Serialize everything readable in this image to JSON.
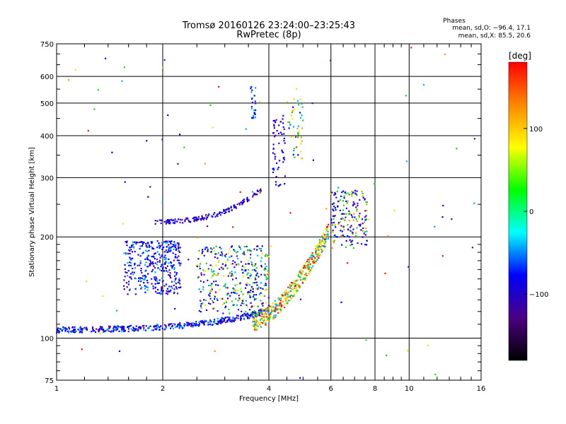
{
  "chart_data": {
    "type": "scatter",
    "title": "Tromsø 20160126 23:24:00–23:25:43",
    "subtitle": "RwPretec (8p)",
    "xlabel": "Frequency [MHz]",
    "ylabel": "Stationary phase Virtual Height [km]",
    "x_scale": "log",
    "y_scale": "log",
    "xlim": [
      1,
      16
    ],
    "ylim": [
      75,
      750
    ],
    "x_ticks": [
      "1",
      "2",
      "4",
      "6",
      "8",
      "10",
      "16"
    ],
    "x_grid": [
      1,
      2,
      4,
      6,
      8,
      10,
      16
    ],
    "y_ticks": [
      "75",
      "100",
      "200",
      "300",
      "400",
      "500",
      "600",
      "750"
    ],
    "y_grid": [
      75,
      100,
      200,
      300,
      400,
      500,
      600,
      750
    ],
    "grid": true,
    "phases": {
      "title": "Phases",
      "line_o": "mean, sd,O: −96.4, 17.1",
      "line_x": "mean, sd,X:  85.5, 20.6"
    },
    "colorbar": {
      "label": "[deg]",
      "range": [
        -180,
        180
      ],
      "ticks": [
        "100",
        "0",
        "−100"
      ],
      "tick_values": [
        100,
        0,
        -100
      ],
      "colors": [
        "#ff0000",
        "#ff8800",
        "#ffff00",
        "#00ff00",
        "#00ffff",
        "#0000ff",
        "#4b0082",
        "#000000"
      ]
    },
    "series": [
      {
        "trace": "O-mode E/F1 lower trace",
        "x_range": [
          1.0,
          3.9
        ],
        "y_start": 106,
        "y_end": 120,
        "phase_mean": -96.4
      },
      {
        "trace": "O-mode F trace",
        "x_range": [
          1.8,
          4.0
        ],
        "y_start": 220,
        "y_end": 280,
        "phase_mean": -96.4
      },
      {
        "trace": "X-mode F trace",
        "x_range": [
          3.7,
          5.8
        ],
        "y_start": 115,
        "y_end": 210,
        "phase_mean": 85.5
      }
    ]
  }
}
